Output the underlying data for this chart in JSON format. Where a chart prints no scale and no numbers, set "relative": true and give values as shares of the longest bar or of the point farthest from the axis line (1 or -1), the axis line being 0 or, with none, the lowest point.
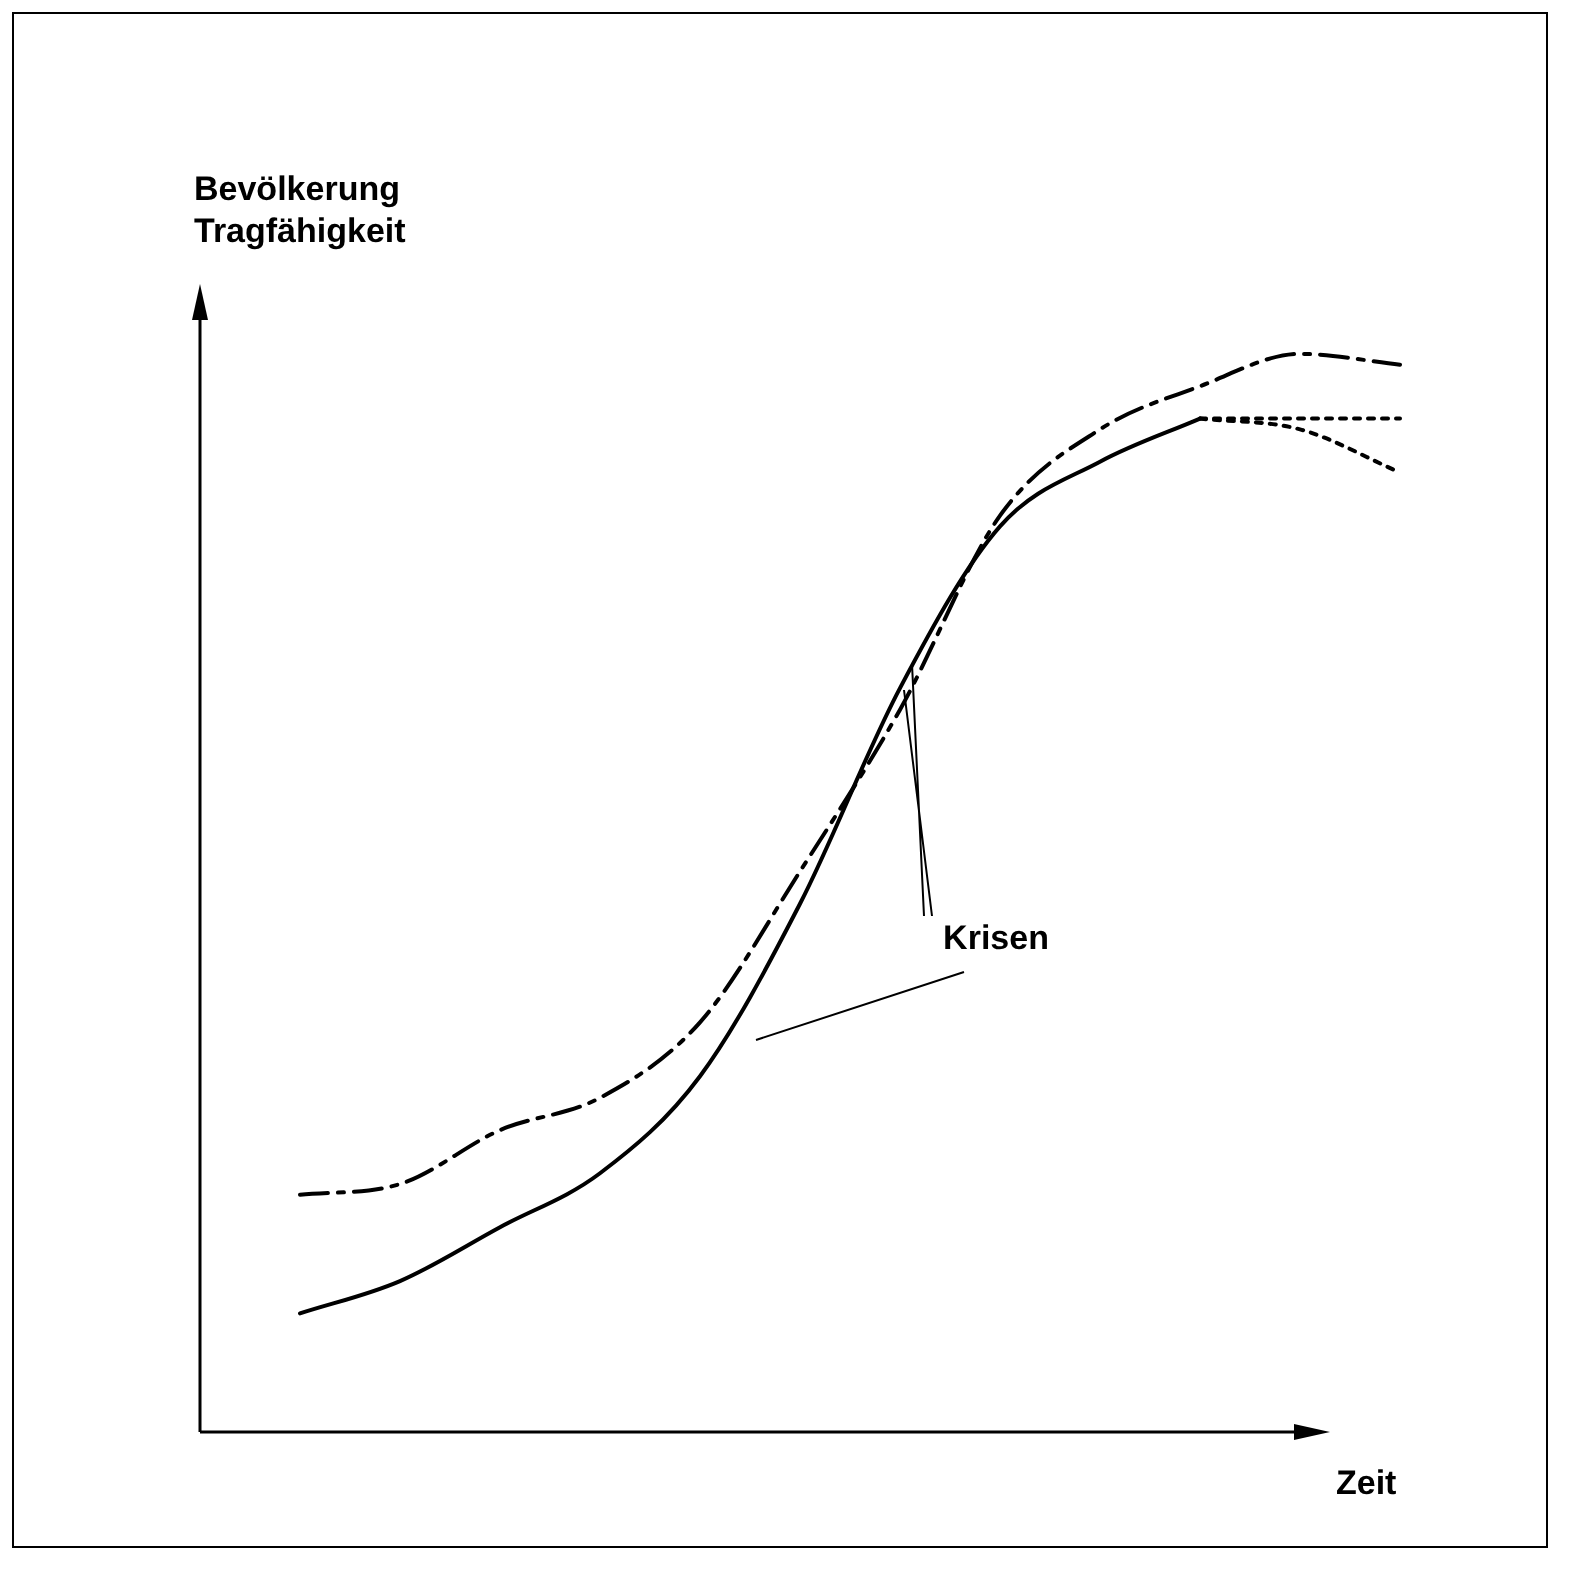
{
  "chart_data": {
    "type": "line",
    "relative": true,
    "ylabel": "Bevölkerung\nTragfähigkeit",
    "xlabel": "Zeit",
    "annotations": [
      "Krisen"
    ],
    "legend": false,
    "marker": "none",
    "categories": [
      null,
      null,
      null,
      null,
      null,
      null,
      null,
      null,
      null,
      null,
      null,
      null
    ],
    "series": [
      {
        "color": "#000000",
        "line_style": "solid",
        "values": [
          0.11,
          0.14,
          0.19,
          0.24,
          0.33,
          0.49,
          0.69,
          0.84,
          0.9,
          0.94,
          null,
          null
        ]
      },
      {
        "color": "#000000",
        "line_style": "dotted",
        "values": [
          null,
          null,
          null,
          null,
          null,
          null,
          null,
          null,
          null,
          0.94,
          0.94,
          0.94
        ]
      },
      {
        "color": "#000000",
        "line_style": "dotted",
        "values": [
          null,
          null,
          null,
          null,
          null,
          null,
          null,
          null,
          null,
          0.94,
          0.93,
          0.89
        ]
      },
      {
        "color": "#000000",
        "line_style": "dashed",
        "values": [
          0.22,
          0.23,
          0.28,
          0.31,
          0.38,
          0.52,
          0.67,
          0.85,
          0.93,
          0.97,
          1.0,
          0.99
        ]
      }
    ]
  }
}
